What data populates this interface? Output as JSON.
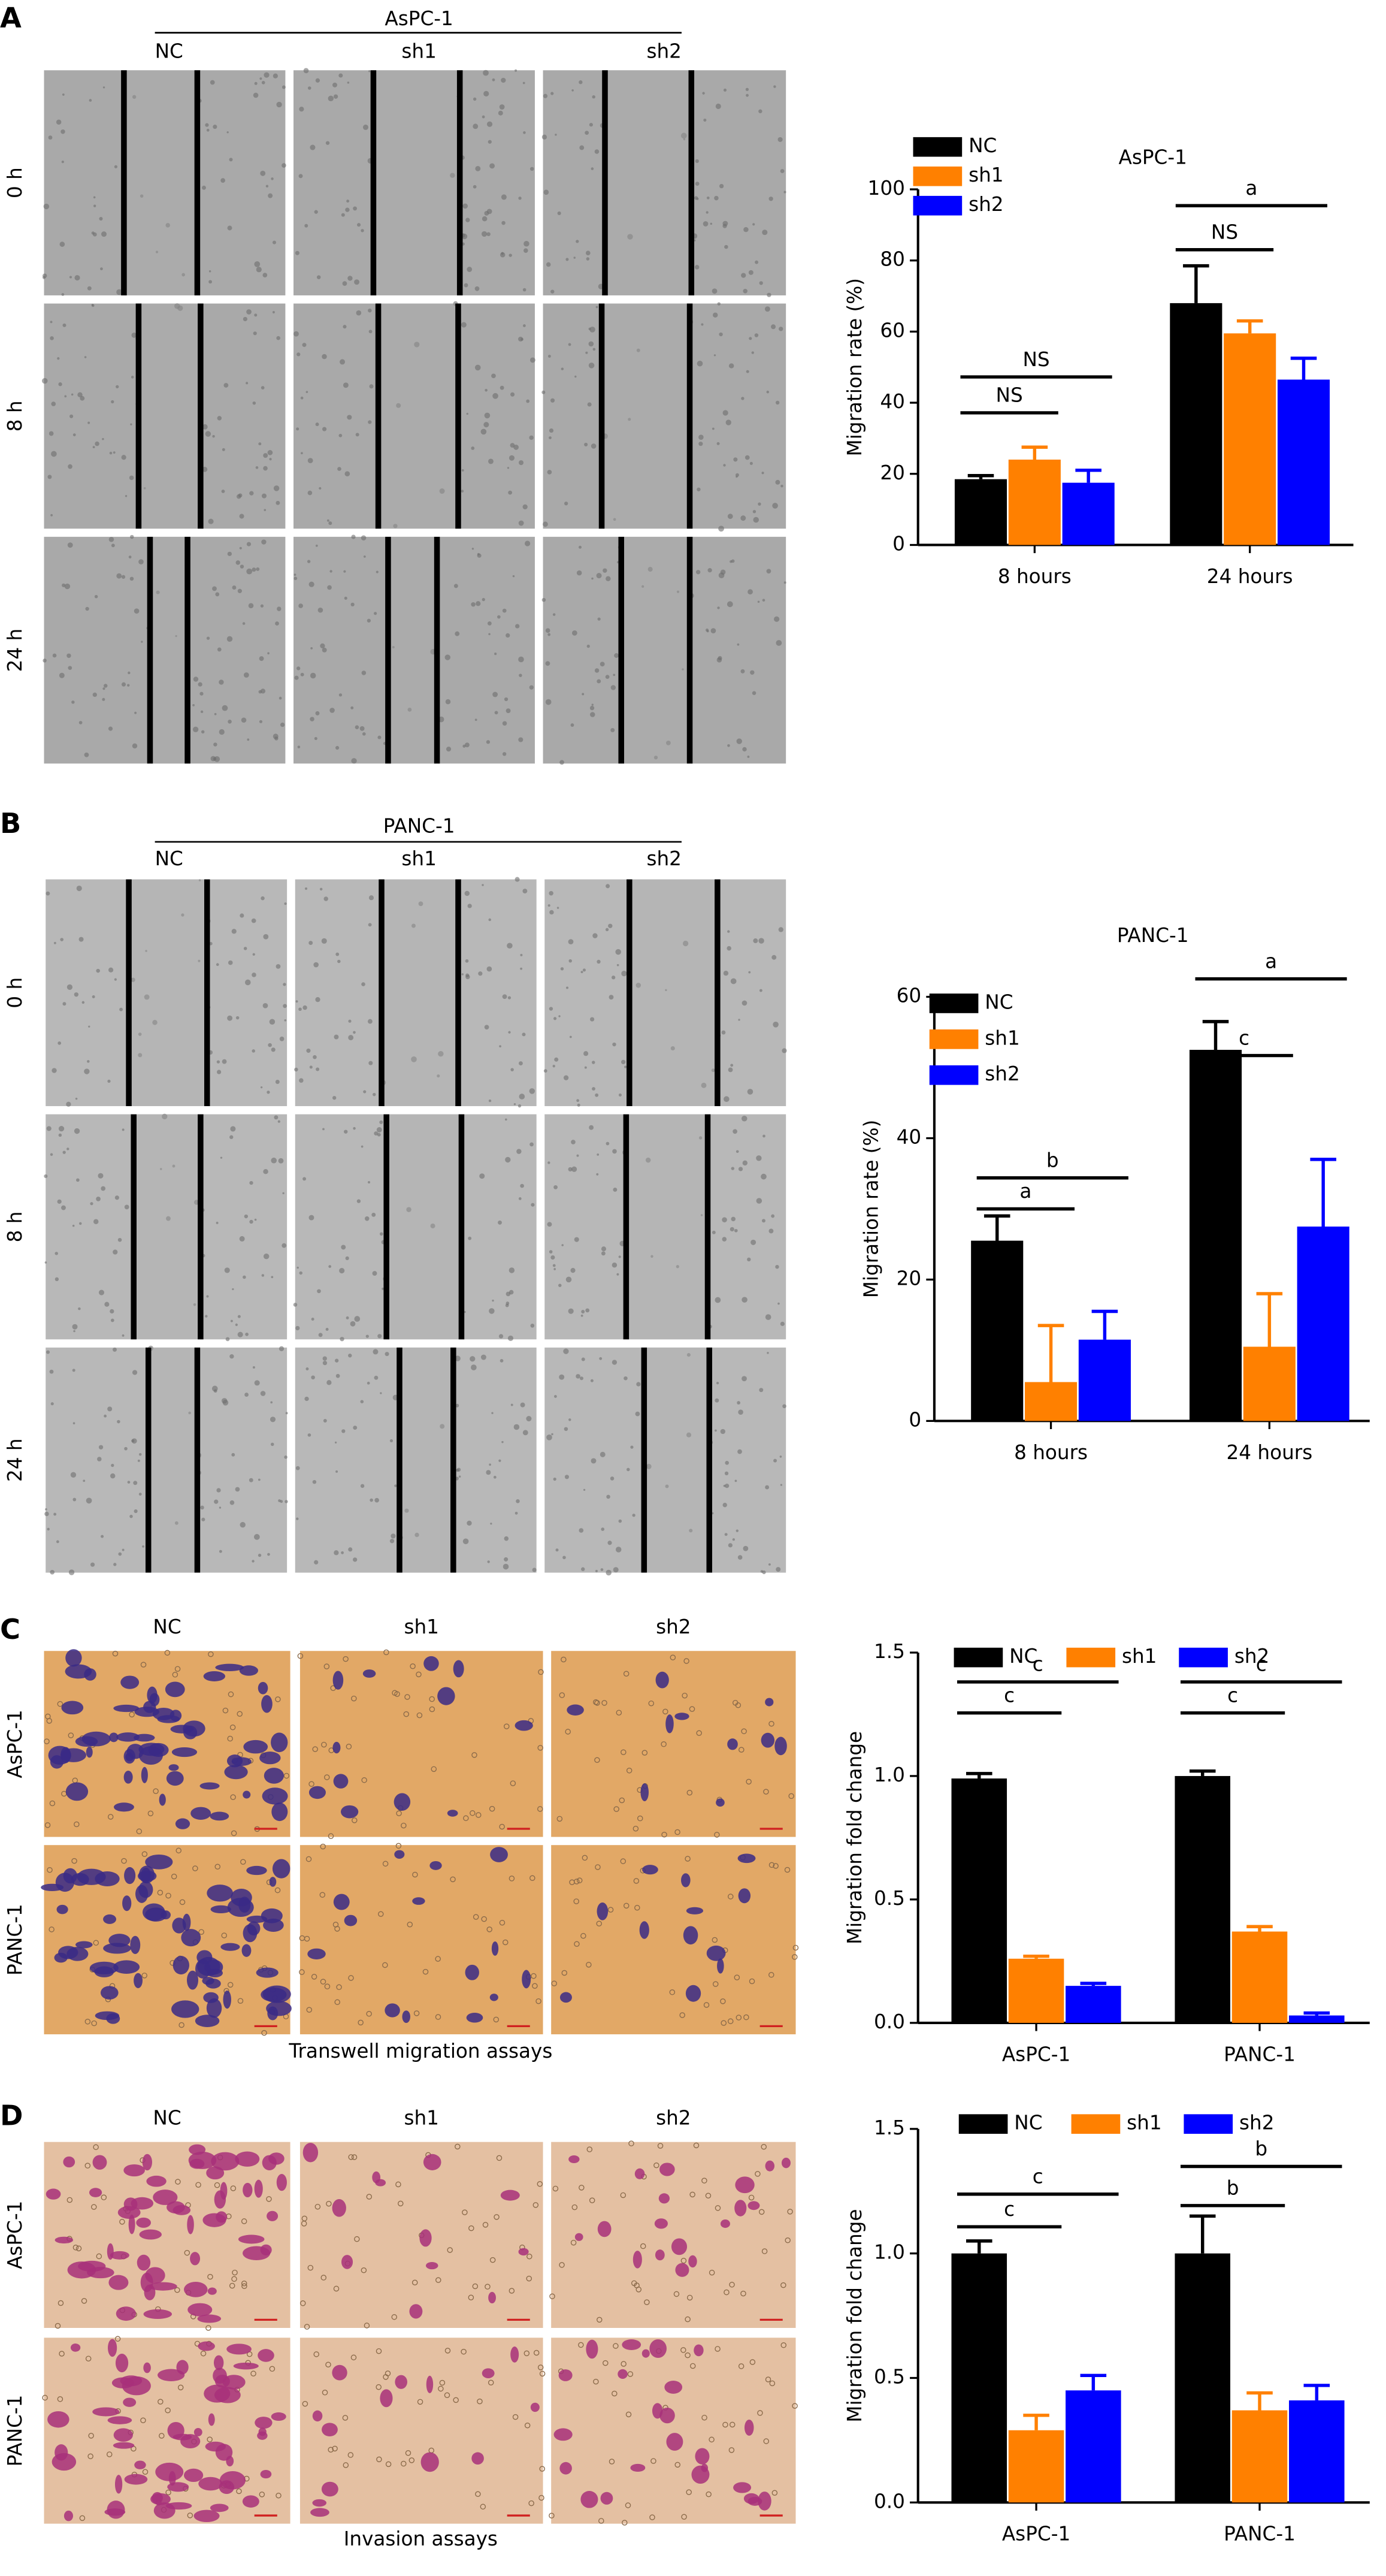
{
  "panels": [
    "A",
    "B",
    "C",
    "D"
  ],
  "wound": {
    "cell_lines": [
      "AsPC-1",
      "PANC-1"
    ],
    "columns": [
      "NC",
      "sh1",
      "sh2"
    ],
    "rows": [
      "0 h",
      "8 h",
      "24 h"
    ]
  },
  "transwell": {
    "columns": [
      "NC",
      "sh1",
      "sh2"
    ],
    "rows": [
      "AsPC-1",
      "PANC-1"
    ],
    "captions": [
      "Transwell migration assays",
      "Invasion assays"
    ]
  },
  "chart_data": [
    {
      "type": "bar",
      "title": "AsPC-1",
      "y_label": "Migration rate (%)",
      "categories": [
        "8 hours",
        "24 hours"
      ],
      "series": [
        {
          "name": "NC",
          "color": "#000000",
          "values": [
            18.5,
            68
          ],
          "errors": [
            1,
            10.5
          ]
        },
        {
          "name": "sh1",
          "color": "#ff8000",
          "values": [
            24,
            59.5
          ],
          "errors": [
            3.5,
            3.5
          ]
        },
        {
          "name": "sh2",
          "color": "#0000ff",
          "values": [
            17.5,
            46.5
          ],
          "errors": [
            3.5,
            6
          ]
        }
      ],
      "ylim": [
        0,
        100
      ],
      "yticks": [
        0,
        20,
        40,
        60,
        80,
        100
      ],
      "annotations": [
        "NS",
        "NS",
        "NS",
        "a"
      ],
      "legend": "top-left"
    },
    {
      "type": "bar",
      "title": "PANC-1",
      "y_label": "Migration rate (%)",
      "categories": [
        "8 hours",
        "24 hours"
      ],
      "series": [
        {
          "name": "NC",
          "color": "#000000",
          "values": [
            25.5,
            52.5
          ],
          "errors": [
            3.5,
            4
          ]
        },
        {
          "name": "sh1",
          "color": "#ff8000",
          "values": [
            5.5,
            10.5
          ],
          "errors": [
            8,
            7.5
          ]
        },
        {
          "name": "sh2",
          "color": "#0000ff",
          "values": [
            11.5,
            27.5
          ],
          "errors": [
            4,
            9.5
          ]
        }
      ],
      "ylim": [
        0,
        60
      ],
      "yticks": [
        0,
        20,
        40,
        60
      ],
      "annotations": [
        "a",
        "b",
        "c",
        "a"
      ],
      "legend": "top-left"
    },
    {
      "type": "bar",
      "y_label": "Migration fold change",
      "categories": [
        "AsPC-1",
        "PANC-1"
      ],
      "series": [
        {
          "name": "NC",
          "color": "#000000",
          "values": [
            0.99,
            1.0
          ],
          "errors": [
            0.02,
            0.02
          ]
        },
        {
          "name": "sh1",
          "color": "#ff8000",
          "values": [
            0.26,
            0.37
          ],
          "errors": [
            0.01,
            0.02
          ]
        },
        {
          "name": "sh2",
          "color": "#0000ff",
          "values": [
            0.15,
            0.03
          ],
          "errors": [
            0.01,
            0.01
          ]
        }
      ],
      "ylim": [
        0,
        1.5
      ],
      "yticks": [
        {
          "value": 0,
          "label": "0.0"
        },
        0.5,
        {
          "value": 1,
          "label": "1.0"
        },
        1.5
      ],
      "annotations": [
        "c",
        "c",
        "c",
        "c"
      ],
      "legend": "top"
    },
    {
      "type": "bar",
      "y_label": "Migration fold change",
      "categories": [
        "AsPC-1",
        "PANC-1"
      ],
      "series": [
        {
          "name": "NC",
          "color": "#000000",
          "values": [
            1.0,
            1.0
          ],
          "errors": [
            0.05,
            0.15
          ]
        },
        {
          "name": "sh1",
          "color": "#ff8000",
          "values": [
            0.29,
            0.37
          ],
          "errors": [
            0.06,
            0.07
          ]
        },
        {
          "name": "sh2",
          "color": "#0000ff",
          "values": [
            0.45,
            0.41
          ],
          "errors": [
            0.06,
            0.06
          ]
        }
      ],
      "ylim": [
        0,
        1.5
      ],
      "yticks": [
        {
          "value": 0,
          "label": "0.0"
        },
        0.5,
        {
          "value": 1,
          "label": "1.0"
        },
        1.5
      ],
      "annotations": [
        "c",
        "c",
        "b",
        "b"
      ],
      "legend": "top"
    }
  ]
}
